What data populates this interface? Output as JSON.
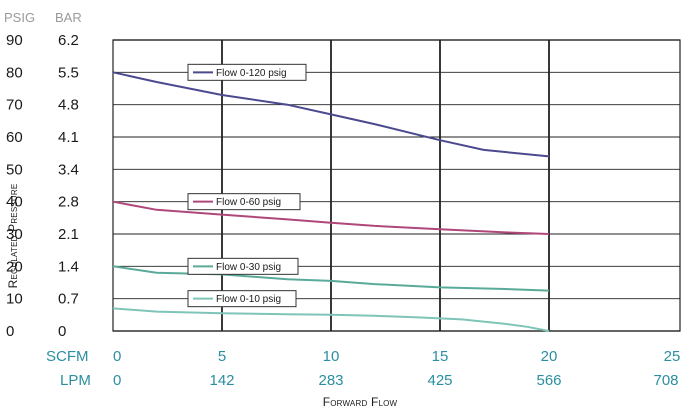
{
  "chart_data": {
    "type": "line",
    "units_header": {
      "psig": "PSIG",
      "bar": "BAR"
    },
    "ylabel": "Regulated Pressure",
    "xlabel": "Forward Flow",
    "y_ticks_psig": [
      "90",
      "80",
      "70",
      "60",
      "50",
      "40",
      "30",
      "20",
      "10",
      "0"
    ],
    "y_ticks_bar": [
      "6.2",
      "5.5",
      "4.8",
      "4.1",
      "3.4",
      "2.8",
      "2.1",
      "1.4",
      "0.7",
      "0"
    ],
    "x_row_scfm_label": "SCFM",
    "x_row_lpm_label": "LPM",
    "x_ticks_scfm": [
      "0",
      "5",
      "10",
      "15",
      "20",
      "25"
    ],
    "x_ticks_lpm": [
      "0",
      "142",
      "283",
      "425",
      "566",
      "708"
    ],
    "xlim": [
      0,
      25
    ],
    "ylim": [
      0,
      90
    ],
    "grid": true,
    "series": [
      {
        "name": "Flow 0-120 psig",
        "color": "#4b4a8f",
        "x": [
          0,
          2,
          5,
          8,
          10,
          12,
          15,
          17,
          20
        ],
        "y": [
          80,
          77,
          73,
          70,
          67,
          64,
          59,
          56,
          54
        ]
      },
      {
        "name": "Flow 0-60 psig",
        "color": "#b0477a",
        "x": [
          0,
          2,
          5,
          8,
          10,
          12,
          15,
          18,
          20
        ],
        "y": [
          40,
          37.5,
          36,
          34.5,
          33.5,
          32.5,
          31.5,
          30.5,
          30
        ]
      },
      {
        "name": "Flow 0-30 psig",
        "color": "#5aaa9a",
        "x": [
          0,
          2,
          5,
          8,
          10,
          12,
          15,
          18,
          20
        ],
        "y": [
          20,
          18,
          17.5,
          16,
          15.5,
          14.5,
          13.5,
          13,
          12.5
        ]
      },
      {
        "name": "Flow 0-10 psig",
        "color": "#7fc4b8",
        "x": [
          0,
          2,
          5,
          8,
          10,
          12,
          14,
          16,
          18,
          19,
          20
        ],
        "y": [
          7,
          6,
          5.5,
          5.2,
          5,
          4.7,
          4.2,
          3.6,
          2.2,
          1.3,
          0
        ]
      }
    ]
  }
}
